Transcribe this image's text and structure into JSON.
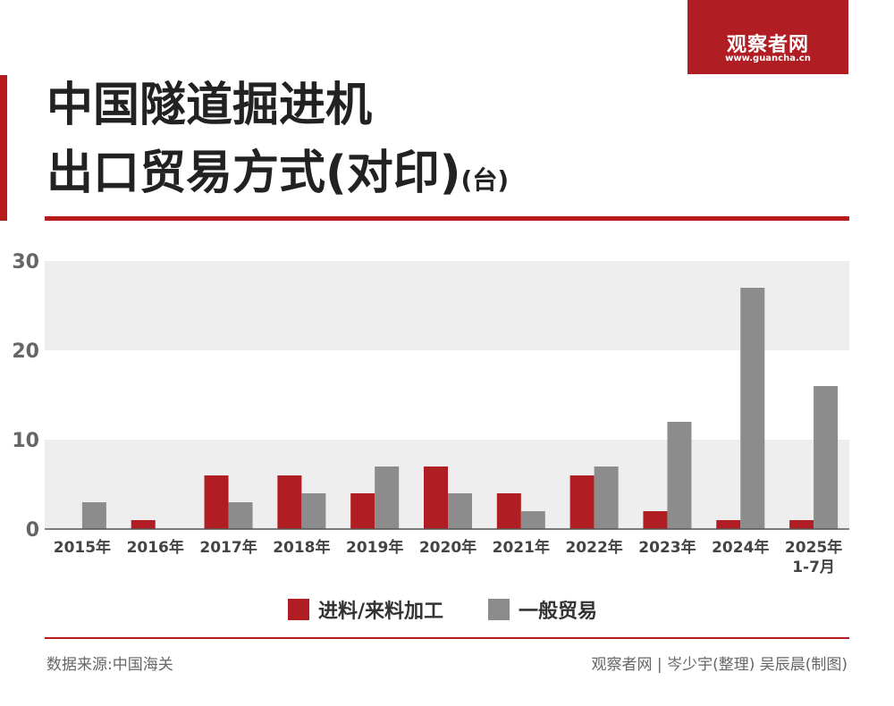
{
  "brand": {
    "name": "观察者网",
    "url": "www.guancha.cn"
  },
  "title": {
    "line1": "中国隧道掘进机",
    "line2": "出口贸易方式(对印)",
    "unit": "(台)"
  },
  "footer": {
    "source": "数据来源:中国海关",
    "credit": "观察者网 | 岑少宇(整理) 吴辰晨(制图)"
  },
  "colors": {
    "accent": "#b01e24",
    "series1": "#b01e24",
    "series2": "#8c8c8c",
    "band": "#eeeeee"
  },
  "chart_data": {
    "type": "bar",
    "categories": [
      "2015年",
      "2016年",
      "2017年",
      "2018年",
      "2019年",
      "2020年",
      "2021年",
      "2022年",
      "2023年",
      "2024年",
      "2025年\n1-7月"
    ],
    "series": [
      {
        "name": "进料/来料加工",
        "color": "#b01e24",
        "values": [
          0,
          1,
          6,
          6,
          4,
          7,
          4,
          6,
          2,
          1,
          1
        ]
      },
      {
        "name": "一般贸易",
        "color": "#8c8c8c",
        "values": [
          3,
          0,
          3,
          4,
          7,
          4,
          2,
          7,
          12,
          27,
          16
        ]
      }
    ],
    "yticks": [
      0,
      10,
      20,
      30
    ],
    "ylim": [
      0,
      30
    ],
    "grid": "alternating horizontal bands",
    "legend_position": "bottom-center"
  }
}
